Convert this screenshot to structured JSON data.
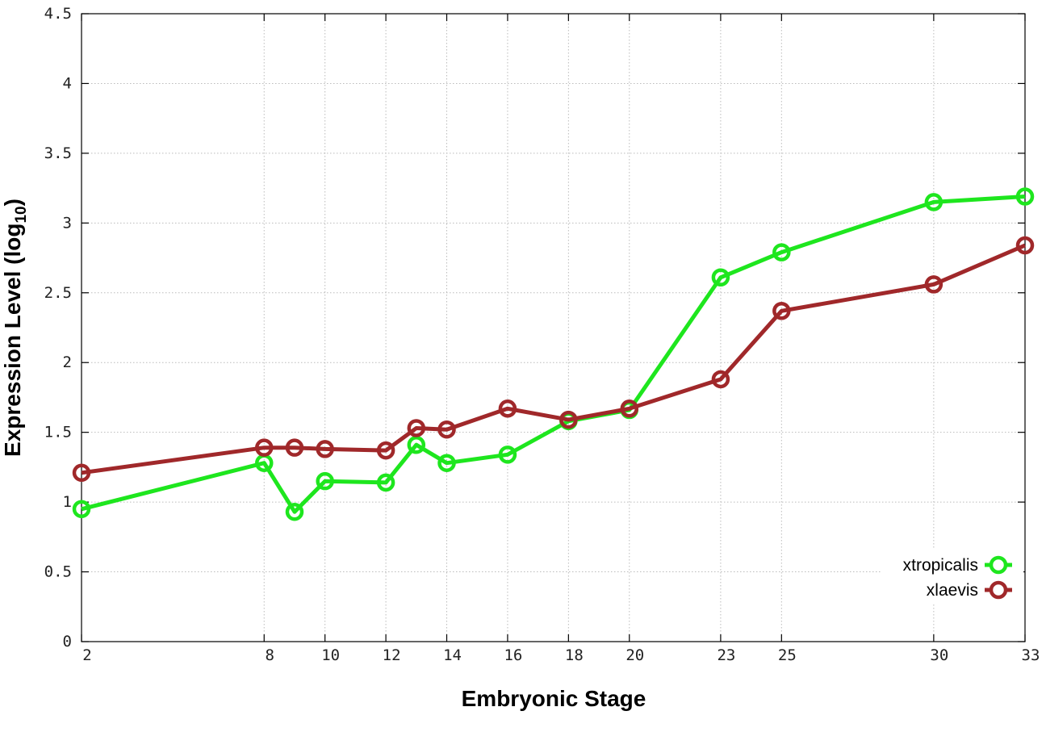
{
  "chart_data": {
    "type": "line",
    "xlabel": "Embryonic Stage",
    "ylabel_main": "Expression Level (log",
    "ylabel_sub": "10",
    "ylabel_close": ")",
    "xlim": [
      2,
      33
    ],
    "ylim": [
      0,
      4.5
    ],
    "xticks": [
      2,
      8,
      10,
      12,
      14,
      16,
      18,
      20,
      23,
      25,
      30,
      33
    ],
    "yticks": [
      0,
      0.5,
      1,
      1.5,
      2,
      2.5,
      3,
      3.5,
      4,
      4.5
    ],
    "ytick_labels": [
      "0",
      "0.5",
      "1",
      "1.5",
      "2",
      "2.5",
      "3",
      "3.5",
      "4",
      "4.5"
    ],
    "grid": true,
    "legend_position": "bottom-right",
    "series": [
      {
        "name": "xtropicalis",
        "color": "#1ee61e",
        "x": [
          2,
          8,
          9,
          10,
          12,
          13,
          14,
          16,
          18,
          20,
          23,
          25,
          30,
          33
        ],
        "y": [
          0.95,
          1.28,
          0.93,
          1.15,
          1.14,
          1.41,
          1.28,
          1.34,
          1.58,
          1.66,
          2.61,
          2.79,
          3.15,
          3.19
        ]
      },
      {
        "name": "xlaevis",
        "color": "#a0282a",
        "x": [
          2,
          8,
          9,
          10,
          12,
          13,
          14,
          16,
          18,
          20,
          23,
          25,
          30,
          33
        ],
        "y": [
          1.21,
          1.39,
          1.39,
          1.38,
          1.37,
          1.53,
          1.52,
          1.67,
          1.59,
          1.67,
          1.88,
          2.37,
          2.56,
          2.84
        ]
      }
    ]
  }
}
